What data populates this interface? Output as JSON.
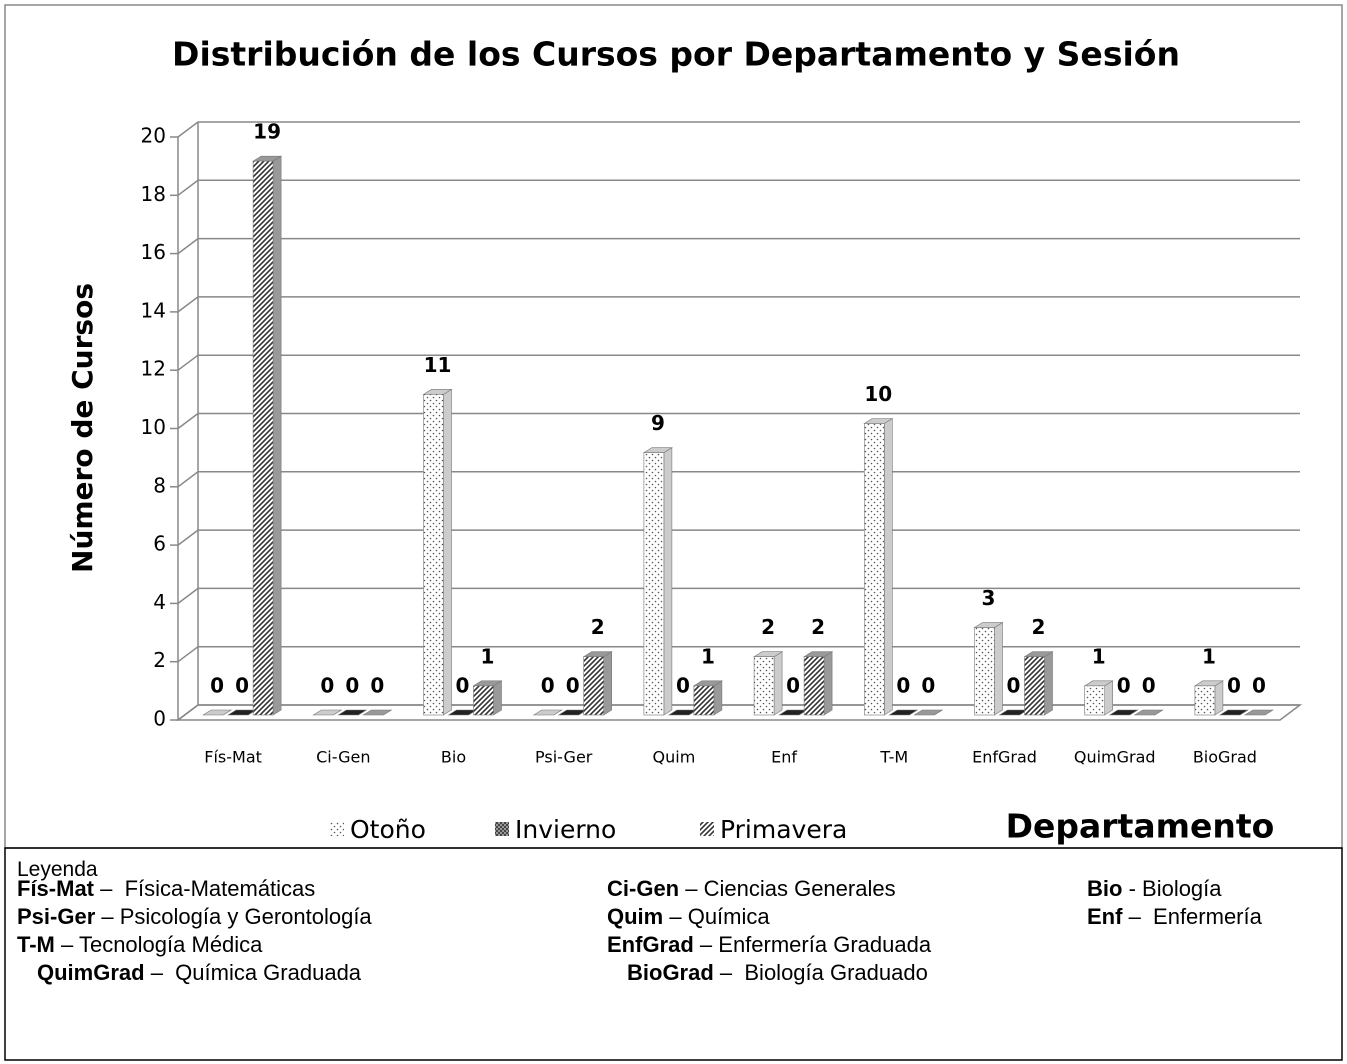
{
  "chart_data": {
    "type": "bar3d",
    "title": "Distribución de los Cursos por Departamento y Sesión",
    "y_label": "Número de Cursos",
    "x_label": "Departamento",
    "categories": [
      "Fís-Mat",
      "Ci-Gen",
      "Bio",
      "Psi-Ger",
      "Quim",
      "Enf",
      "T-M",
      "EnfGrad",
      "QuimGrad",
      "BioGrad"
    ],
    "series": [
      {
        "name": "Otoño",
        "color": "#ffffff",
        "values": [
          0,
          0,
          11,
          0,
          9,
          2,
          10,
          3,
          1,
          1
        ]
      },
      {
        "name": "Invierno",
        "color": "#333333",
        "values": [
          0,
          0,
          0,
          0,
          0,
          0,
          0,
          0,
          0,
          0
        ]
      },
      {
        "name": "Primavera",
        "color": "#666666",
        "values": [
          19,
          0,
          1,
          2,
          1,
          2,
          0,
          2,
          0,
          0
        ]
      }
    ],
    "ylim": [
      0,
      20
    ],
    "yticks": [
      0,
      2,
      4,
      6,
      8,
      10,
      12,
      14,
      16,
      18,
      20
    ],
    "grid": true,
    "legend": "bottom"
  },
  "legend_box": {
    "title": "Leyenda",
    "rows": [
      [
        {
          "abbr": "Fís-Mat",
          "text": "–  Física-Matemáticas"
        },
        {
          "abbr": "Ci-Gen",
          "text": "– Ciencias Generales"
        },
        {
          "abbr": "Bio",
          "text": "- Biología"
        }
      ],
      [
        {
          "abbr": "Psi-Ger",
          "text": "– Psicología y Gerontología"
        },
        {
          "abbr": "Quim",
          "text": "– Química"
        },
        {
          "abbr": "Enf",
          "text": "–  Enfermería"
        }
      ],
      [
        {
          "abbr": "T-M",
          "text": "– Tecnología Médica"
        },
        {
          "abbr": "EnfGrad",
          "text": "– Enfermería Graduada"
        }
      ],
      [
        {
          "abbr": "QuimGrad",
          "text": "–  Química Graduada"
        },
        {
          "abbr": "BioGrad",
          "text": "–  Biología Graduado"
        }
      ]
    ]
  }
}
